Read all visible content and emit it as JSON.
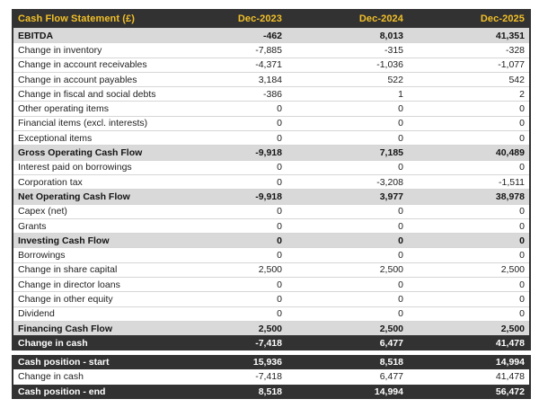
{
  "header": {
    "label": "Cash Flow Statement (£)",
    "columns": [
      "Dec-2023",
      "Dec-2024",
      "Dec-2025"
    ]
  },
  "body_rows": [
    {
      "label": "EBITDA",
      "values": [
        "-462",
        "8,013",
        "41,351"
      ],
      "style": "subtotal"
    },
    {
      "label": "Change in inventory",
      "values": [
        "-7,885",
        "-315",
        "-328"
      ],
      "style": "normal"
    },
    {
      "label": "Change in account receivables",
      "values": [
        "-4,371",
        "-1,036",
        "-1,077"
      ],
      "style": "normal"
    },
    {
      "label": "Change in account payables",
      "values": [
        "3,184",
        "522",
        "542"
      ],
      "style": "normal"
    },
    {
      "label": "Change in fiscal and social debts",
      "values": [
        "-386",
        "1",
        "2"
      ],
      "style": "normal"
    },
    {
      "label": "Other operating items",
      "values": [
        "0",
        "0",
        "0"
      ],
      "style": "normal"
    },
    {
      "label": "Financial items (excl. interests)",
      "values": [
        "0",
        "0",
        "0"
      ],
      "style": "normal"
    },
    {
      "label": "Exceptional items",
      "values": [
        "0",
        "0",
        "0"
      ],
      "style": "normal"
    },
    {
      "label": "Gross Operating Cash Flow",
      "values": [
        "-9,918",
        "7,185",
        "40,489"
      ],
      "style": "subtotal"
    },
    {
      "label": "Interest paid on borrowings",
      "values": [
        "0",
        "0",
        "0"
      ],
      "style": "normal"
    },
    {
      "label": "Corporation tax",
      "values": [
        "0",
        "-3,208",
        "-1,511"
      ],
      "style": "normal"
    },
    {
      "label": "Net Operating Cash Flow",
      "values": [
        "-9,918",
        "3,977",
        "38,978"
      ],
      "style": "subtotal"
    },
    {
      "label": "Capex (net)",
      "values": [
        "0",
        "0",
        "0"
      ],
      "style": "normal"
    },
    {
      "label": "Grants",
      "values": [
        "0",
        "0",
        "0"
      ],
      "style": "normal"
    },
    {
      "label": "Investing Cash Flow",
      "values": [
        "0",
        "0",
        "0"
      ],
      "style": "subtotal"
    },
    {
      "label": "Borrowings",
      "values": [
        "0",
        "0",
        "0"
      ],
      "style": "normal"
    },
    {
      "label": "Change in share capital",
      "values": [
        "2,500",
        "2,500",
        "2,500"
      ],
      "style": "normal"
    },
    {
      "label": "Change in director loans",
      "values": [
        "0",
        "0",
        "0"
      ],
      "style": "normal"
    },
    {
      "label": "Change in other equity",
      "values": [
        "0",
        "0",
        "0"
      ],
      "style": "normal"
    },
    {
      "label": "Dividend",
      "values": [
        "0",
        "0",
        "0"
      ],
      "style": "normal"
    },
    {
      "label": "Financing Cash Flow",
      "values": [
        "2,500",
        "2,500",
        "2,500"
      ],
      "style": "subtotal"
    },
    {
      "label": "Change in cash",
      "values": [
        "-7,418",
        "6,477",
        "41,478"
      ],
      "style": "dark"
    }
  ],
  "summary_rows": [
    {
      "label": "Cash position - start",
      "values": [
        "15,936",
        "8,518",
        "14,994"
      ],
      "style": "dark"
    },
    {
      "label": "Change in cash",
      "values": [
        "-7,418",
        "6,477",
        "41,478"
      ],
      "style": "normal"
    },
    {
      "label": "Cash position - end",
      "values": [
        "8,518",
        "14,994",
        "56,472"
      ],
      "style": "dark"
    }
  ],
  "colors": {
    "header_bg": "#323232",
    "header_text": "#F2C029",
    "subtotal_bg": "#D9D9D9",
    "dark_row_bg": "#323232",
    "dark_row_text": "#FFFFFF"
  }
}
